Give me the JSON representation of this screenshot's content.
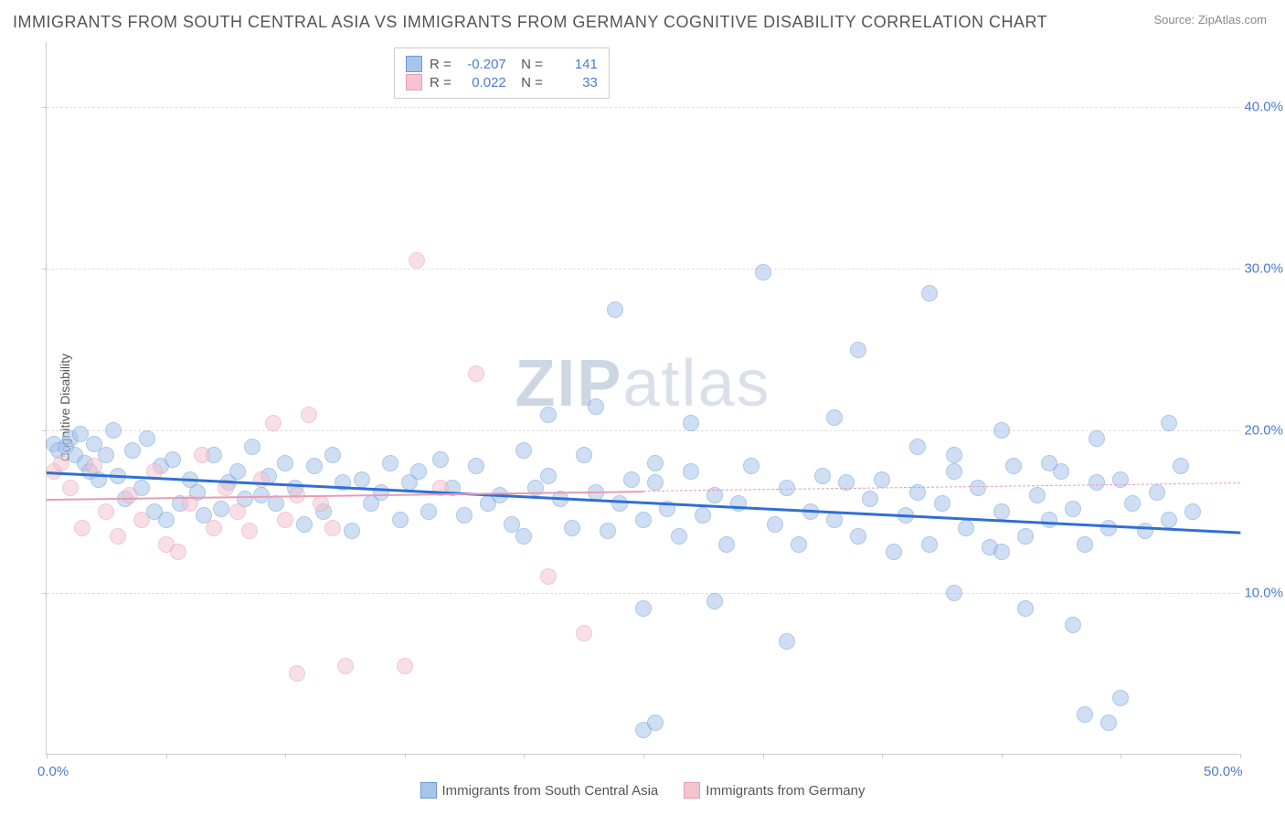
{
  "title": "IMMIGRANTS FROM SOUTH CENTRAL ASIA VS IMMIGRANTS FROM GERMANY COGNITIVE DISABILITY CORRELATION CHART",
  "source": "Source: ZipAtlas.com",
  "ylabel": "Cognitive Disability",
  "watermark": {
    "bold": "ZIP",
    "rest": "atlas"
  },
  "chart": {
    "type": "scatter",
    "xlim": [
      0,
      50
    ],
    "ylim": [
      0,
      44
    ],
    "yticks": [
      {
        "v": 10,
        "label": "10.0%"
      },
      {
        "v": 20,
        "label": "20.0%"
      },
      {
        "v": 30,
        "label": "30.0%"
      },
      {
        "v": 40,
        "label": "40.0%"
      }
    ],
    "xticks": [
      {
        "v": 0,
        "label": "0.0%"
      },
      {
        "v": 50,
        "label": "50.0%"
      }
    ],
    "xtick_marks": [
      0,
      5,
      10,
      15,
      20,
      25,
      30,
      35,
      40,
      45,
      50
    ],
    "background_color": "#ffffff",
    "grid_color": "#dddddd",
    "point_radius": 9,
    "point_opacity": 0.55,
    "series": [
      {
        "name": "Immigrants from South Central Asia",
        "color_fill": "#a8c4eb",
        "color_stroke": "#6b9bd6",
        "trend": {
          "x1": 0,
          "y1": 17.5,
          "x2": 50,
          "y2": 13.8,
          "color": "#2f6fd4",
          "width": 2.5
        },
        "R": "-0.207",
        "N": "141",
        "points": [
          [
            0.3,
            19.2
          ],
          [
            0.5,
            18.8
          ],
          [
            0.8,
            19.0
          ],
          [
            1.0,
            19.5
          ],
          [
            1.2,
            18.5
          ],
          [
            1.4,
            19.8
          ],
          [
            1.6,
            18.0
          ],
          [
            1.8,
            17.5
          ],
          [
            2.0,
            19.2
          ],
          [
            2.2,
            17.0
          ],
          [
            2.5,
            18.5
          ],
          [
            2.8,
            20.0
          ],
          [
            3.0,
            17.2
          ],
          [
            3.3,
            15.8
          ],
          [
            3.6,
            18.8
          ],
          [
            4.0,
            16.5
          ],
          [
            4.2,
            19.5
          ],
          [
            4.5,
            15.0
          ],
          [
            4.8,
            17.8
          ],
          [
            5.0,
            14.5
          ],
          [
            5.3,
            18.2
          ],
          [
            5.6,
            15.5
          ],
          [
            6.0,
            17.0
          ],
          [
            6.3,
            16.2
          ],
          [
            6.6,
            14.8
          ],
          [
            7.0,
            18.5
          ],
          [
            7.3,
            15.2
          ],
          [
            7.6,
            16.8
          ],
          [
            8.0,
            17.5
          ],
          [
            8.3,
            15.8
          ],
          [
            8.6,
            19.0
          ],
          [
            9.0,
            16.0
          ],
          [
            9.3,
            17.2
          ],
          [
            9.6,
            15.5
          ],
          [
            10.0,
            18.0
          ],
          [
            10.4,
            16.5
          ],
          [
            10.8,
            14.2
          ],
          [
            11.2,
            17.8
          ],
          [
            11.6,
            15.0
          ],
          [
            12.0,
            18.5
          ],
          [
            12.4,
            16.8
          ],
          [
            12.8,
            13.8
          ],
          [
            13.2,
            17.0
          ],
          [
            13.6,
            15.5
          ],
          [
            14.0,
            16.2
          ],
          [
            14.4,
            18.0
          ],
          [
            14.8,
            14.5
          ],
          [
            15.2,
            16.8
          ],
          [
            15.6,
            17.5
          ],
          [
            16.0,
            15.0
          ],
          [
            16.5,
            18.2
          ],
          [
            17.0,
            16.5
          ],
          [
            17.5,
            14.8
          ],
          [
            18.0,
            17.8
          ],
          [
            18.5,
            15.5
          ],
          [
            19.0,
            16.0
          ],
          [
            19.5,
            14.2
          ],
          [
            20.0,
            18.8
          ],
          [
            20.0,
            13.5
          ],
          [
            20.5,
            16.5
          ],
          [
            21.0,
            17.2
          ],
          [
            21.0,
            21.0
          ],
          [
            21.5,
            15.8
          ],
          [
            22.0,
            14.0
          ],
          [
            22.5,
            18.5
          ],
          [
            23.0,
            16.2
          ],
          [
            23.0,
            21.5
          ],
          [
            23.5,
            13.8
          ],
          [
            24.0,
            15.5
          ],
          [
            23.8,
            27.5
          ],
          [
            24.5,
            17.0
          ],
          [
            25.0,
            14.5
          ],
          [
            25.0,
            9.0
          ],
          [
            25.5,
            16.8
          ],
          [
            26.0,
            15.2
          ],
          [
            25.5,
            18.0
          ],
          [
            26.5,
            13.5
          ],
          [
            27.0,
            17.5
          ],
          [
            27.5,
            14.8
          ],
          [
            27.0,
            20.5
          ],
          [
            28.0,
            16.0
          ],
          [
            28.5,
            13.0
          ],
          [
            28.0,
            9.5
          ],
          [
            29.0,
            15.5
          ],
          [
            29.5,
            17.8
          ],
          [
            30.0,
            29.8
          ],
          [
            30.5,
            14.2
          ],
          [
            31.0,
            16.5
          ],
          [
            31.5,
            13.0
          ],
          [
            31.0,
            7.0
          ],
          [
            32.0,
            15.0
          ],
          [
            32.5,
            17.2
          ],
          [
            33.0,
            14.5
          ],
          [
            33.5,
            16.8
          ],
          [
            33.0,
            20.8
          ],
          [
            34.0,
            13.5
          ],
          [
            34.5,
            15.8
          ],
          [
            34.0,
            25.0
          ],
          [
            35.0,
            17.0
          ],
          [
            35.5,
            12.5
          ],
          [
            36.0,
            14.8
          ],
          [
            36.5,
            16.2
          ],
          [
            36.5,
            19.0
          ],
          [
            37.0,
            13.0
          ],
          [
            37.5,
            15.5
          ],
          [
            37.0,
            28.5
          ],
          [
            38.0,
            17.5
          ],
          [
            38.5,
            14.0
          ],
          [
            38.0,
            18.5
          ],
          [
            39.0,
            16.5
          ],
          [
            39.5,
            12.8
          ],
          [
            40.0,
            15.0
          ],
          [
            40.0,
            20.0
          ],
          [
            40.5,
            17.8
          ],
          [
            41.0,
            13.5
          ],
          [
            41.5,
            16.0
          ],
          [
            41.0,
            9.0
          ],
          [
            42.0,
            14.5
          ],
          [
            42.5,
            17.5
          ],
          [
            43.0,
            15.2
          ],
          [
            43.0,
            8.0
          ],
          [
            43.5,
            13.0
          ],
          [
            44.0,
            16.8
          ],
          [
            44.0,
            19.5
          ],
          [
            44.5,
            14.0
          ],
          [
            45.0,
            17.0
          ],
          [
            45.5,
            15.5
          ],
          [
            45.0,
            3.5
          ],
          [
            46.0,
            13.8
          ],
          [
            46.5,
            16.2
          ],
          [
            47.0,
            14.5
          ],
          [
            47.0,
            20.5
          ],
          [
            47.5,
            17.8
          ],
          [
            48.0,
            15.0
          ],
          [
            43.5,
            2.5
          ],
          [
            44.5,
            2.0
          ],
          [
            25.0,
            1.5
          ],
          [
            25.5,
            2.0
          ],
          [
            38.0,
            10.0
          ],
          [
            40.0,
            12.5
          ],
          [
            42.0,
            18.0
          ]
        ]
      },
      {
        "name": "Immigrants from Germany",
        "color_fill": "#f4c4d0",
        "color_stroke": "#e89cb0",
        "trend_solid": {
          "x1": 0,
          "y1": 15.8,
          "x2": 25,
          "y2": 16.3,
          "color": "#e89cb0",
          "width": 2
        },
        "trend_dash": {
          "x1": 25,
          "y1": 16.3,
          "x2": 50,
          "y2": 16.8,
          "color": "#e89cb0"
        },
        "R": "0.022",
        "N": "33",
        "points": [
          [
            0.3,
            17.5
          ],
          [
            0.6,
            18.0
          ],
          [
            1.0,
            16.5
          ],
          [
            1.5,
            14.0
          ],
          [
            2.0,
            17.8
          ],
          [
            2.5,
            15.0
          ],
          [
            3.0,
            13.5
          ],
          [
            3.5,
            16.0
          ],
          [
            4.0,
            14.5
          ],
          [
            4.5,
            17.5
          ],
          [
            5.0,
            13.0
          ],
          [
            5.5,
            12.5
          ],
          [
            6.0,
            15.5
          ],
          [
            6.5,
            18.5
          ],
          [
            7.0,
            14.0
          ],
          [
            7.5,
            16.5
          ],
          [
            8.0,
            15.0
          ],
          [
            8.5,
            13.8
          ],
          [
            9.0,
            17.0
          ],
          [
            9.5,
            20.5
          ],
          [
            10.0,
            14.5
          ],
          [
            10.5,
            16.0
          ],
          [
            11.0,
            21.0
          ],
          [
            11.5,
            15.5
          ],
          [
            12.0,
            14.0
          ],
          [
            15.5,
            30.5
          ],
          [
            16.5,
            16.5
          ],
          [
            18.0,
            23.5
          ],
          [
            21.0,
            11.0
          ],
          [
            22.5,
            7.5
          ],
          [
            10.5,
            5.0
          ],
          [
            12.5,
            5.5
          ],
          [
            15.0,
            5.5
          ]
        ]
      }
    ]
  },
  "bottom_legend": [
    {
      "label": "Immigrants from South Central Asia",
      "fill": "#a8c4eb",
      "stroke": "#6b9bd6"
    },
    {
      "label": "Immigrants from Germany",
      "fill": "#f4c4d0",
      "stroke": "#e89cb0"
    }
  ]
}
